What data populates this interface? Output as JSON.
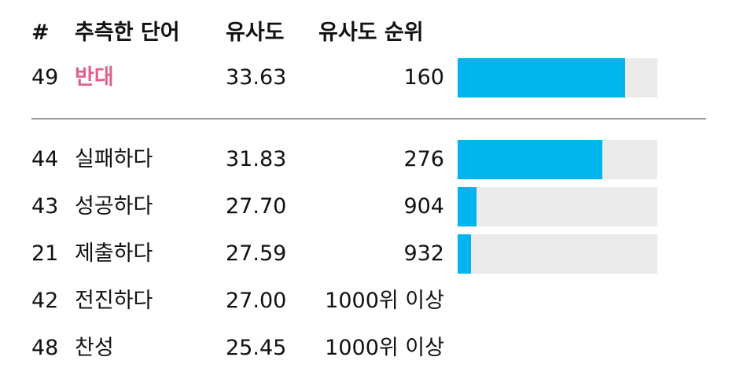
{
  "header": [
    "#",
    "추측한 단어",
    "유사도",
    "유사도 순위"
  ],
  "current": {
    "num": 49,
    "word": "반대",
    "similarity": "33.63",
    "rank": 160
  },
  "rows": [
    {
      "num": 44,
      "word": "실패하다",
      "similarity": "31.83",
      "rank": 276
    },
    {
      "num": 43,
      "word": "성공하다",
      "similarity": "27.70",
      "rank": 904
    },
    {
      "num": 21,
      "word": "제출하다",
      "similarity": "27.59",
      "rank": 932
    },
    {
      "num": 42,
      "word": "전진하다",
      "similarity": "27.00",
      "rank": "1000위 이상"
    },
    {
      "num": 48,
      "word": "찬성",
      "similarity": "25.45",
      "rank": "1000위 이상"
    }
  ],
  "xlim": [
    1000,
    0
  ]
}
